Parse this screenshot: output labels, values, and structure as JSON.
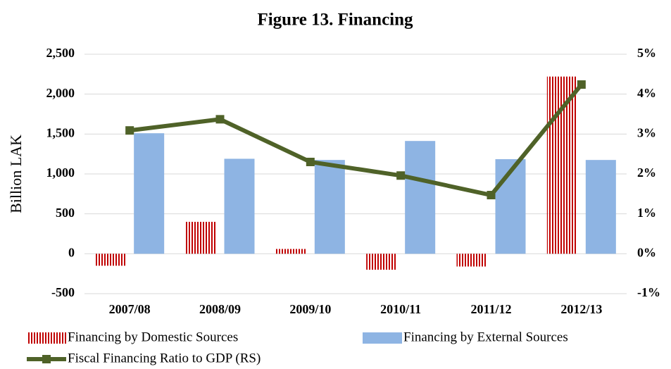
{
  "chart_data": {
    "type": "bar",
    "title": "Figure 13. Financing",
    "y_label": "Billion LAK",
    "categories": [
      "2007/08",
      "2008/09",
      "2009/10",
      "2010/11",
      "2011/12",
      "2012/13"
    ],
    "series": [
      {
        "name": "Financing by Domestic Sources",
        "color": "#c00000",
        "type": "bar",
        "values": [
          -150,
          400,
          60,
          -200,
          -160,
          2220
        ]
      },
      {
        "name": "Financing by External Sources",
        "color": "#8eb4e3",
        "type": "bar",
        "values": [
          1510,
          1190,
          1175,
          1413,
          1185,
          1175
        ]
      },
      {
        "name": "Fiscal Financing Ratio to GDP (RS)",
        "color": "#4f6228",
        "type": "line",
        "axis": "y2",
        "values": [
          3.09,
          3.37,
          2.3,
          1.96,
          1.47,
          4.24
        ]
      }
    ],
    "ylim": [
      -500,
      2500
    ],
    "yticks": [
      -500,
      0,
      500,
      {
        "value": 1000,
        "label": "1,000"
      },
      {
        "value": 1500,
        "label": "1,500"
      },
      {
        "value": 2000,
        "label": "2,000"
      },
      {
        "value": 2500,
        "label": "2,500"
      }
    ],
    "y2lim": [
      -1,
      5
    ],
    "y2ticks": [
      {
        "value": -1,
        "label": "-1%"
      },
      {
        "value": 0,
        "label": "0%"
      },
      {
        "value": 1,
        "label": "1%"
      },
      {
        "value": 2,
        "label": "2%"
      },
      {
        "value": 3,
        "label": "3%"
      },
      {
        "value": 4,
        "label": "4%"
      },
      {
        "value": 5,
        "label": "5%"
      }
    ],
    "grid": true,
    "legend": "bottom"
  }
}
